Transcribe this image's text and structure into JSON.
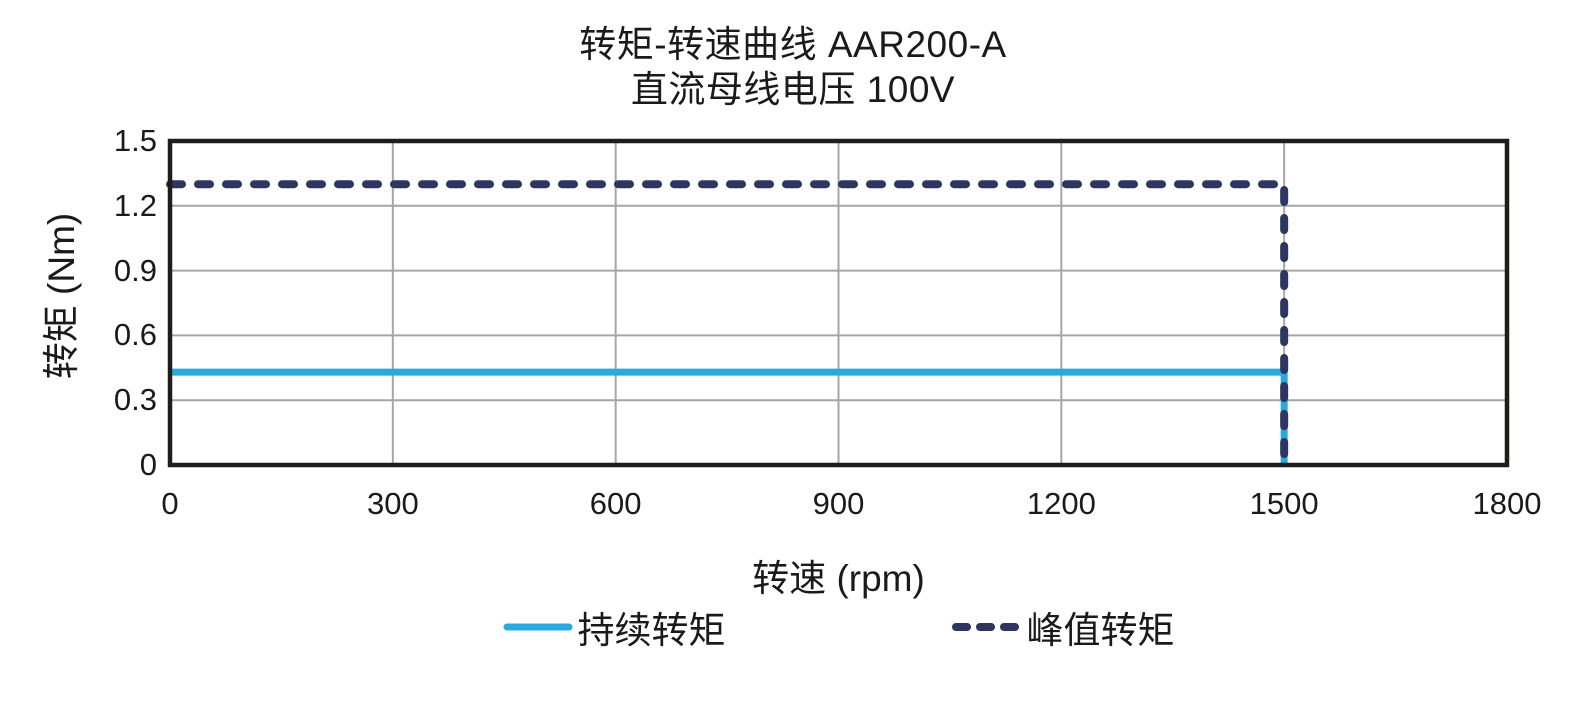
{
  "chart_data": {
    "type": "line",
    "title": "转矩-转速曲线 AAR200-A",
    "subtitle": "直流母线电压 100V",
    "xlabel": "转速 (rpm)",
    "ylabel": "转矩 (Nm)",
    "xlim": [
      0,
      1800
    ],
    "ylim": [
      0,
      1.5
    ],
    "xticks": [
      "0",
      "300",
      "600",
      "900",
      "1200",
      "1500",
      "1800"
    ],
    "yticks": [
      "0",
      "0.3",
      "0.6",
      "0.9",
      "1.2",
      "1.5"
    ],
    "grid": true,
    "legend_position": "bottom",
    "series": [
      {
        "name": "持续转矩",
        "line_style": "solid",
        "color": "#29a9de",
        "points": [
          [
            0,
            0.43
          ],
          [
            1500,
            0.43
          ],
          [
            1500,
            0
          ]
        ]
      },
      {
        "name": "峰值转矩",
        "line_style": "dashed",
        "color": "#2e3560",
        "points": [
          [
            0,
            1.3
          ],
          [
            1500,
            1.3
          ],
          [
            1500,
            0
          ]
        ]
      }
    ],
    "axis_color": "#1d1d1b",
    "grid_color": "#a6a6a6",
    "text_color": "#1a1a1a"
  }
}
